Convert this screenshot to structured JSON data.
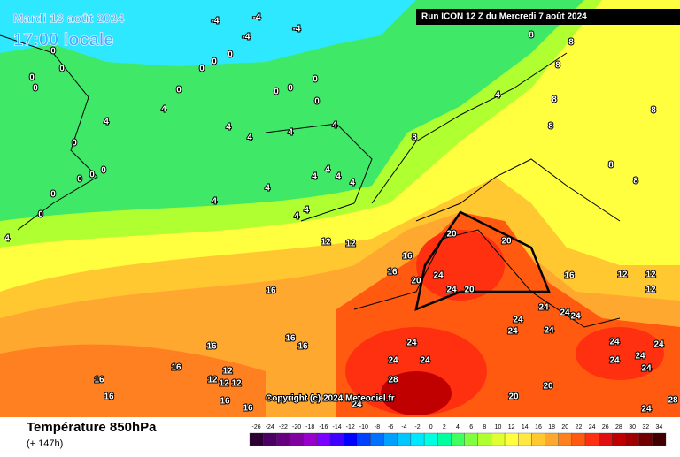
{
  "header": {
    "date": "Mardi 13 août 2024",
    "time": "17:00 locale",
    "run": "Run ICON 12 Z du Mercredi 7 août 2024",
    "copyright": "Copyright (c) 2024 Meteociel.fr"
  },
  "footer": {
    "title": "Température 850hPa",
    "lead": "(+ 147h)"
  },
  "scale": {
    "ticks": [
      -26,
      -24,
      -22,
      -20,
      -18,
      -16,
      -14,
      -12,
      -10,
      -8,
      -6,
      -4,
      -2,
      0,
      2,
      4,
      6,
      8,
      10,
      12,
      14,
      16,
      18,
      20,
      22,
      24,
      26,
      28,
      30,
      32,
      34
    ],
    "colors": [
      "#2d0033",
      "#4b0066",
      "#660080",
      "#8000a0",
      "#9900cc",
      "#7a00ff",
      "#4000ff",
      "#0000ff",
      "#0040ff",
      "#0070ff",
      "#00a0ff",
      "#00c8ff",
      "#00e8ff",
      "#00ffe0",
      "#00ffa0",
      "#40ff60",
      "#80ff40",
      "#b0ff30",
      "#e0ff30",
      "#ffff40",
      "#ffe840",
      "#ffc830",
      "#ffa830",
      "#ff8020",
      "#ff5a10",
      "#ff3010",
      "#e01010",
      "#c00000",
      "#a00000",
      "#700000",
      "#400000"
    ]
  },
  "map_labels": [
    -4,
    -4,
    -4,
    -4,
    0,
    0,
    0,
    0,
    0,
    0,
    0,
    0,
    0,
    0,
    0,
    0,
    4,
    4,
    4,
    4,
    4,
    4,
    4,
    4,
    4,
    4,
    4,
    4,
    4,
    4,
    4,
    8,
    8,
    8,
    8,
    8,
    8,
    8,
    8,
    8,
    0,
    0,
    0,
    0,
    0,
    0,
    4,
    12,
    12,
    16,
    16,
    16,
    16,
    16,
    16,
    16,
    16,
    16,
    12,
    12,
    12,
    12,
    16,
    16,
    20,
    20,
    20,
    20,
    24,
    24,
    24,
    24,
    24,
    24,
    24,
    24,
    24,
    24,
    24,
    24,
    24,
    24,
    24,
    24,
    24,
    24,
    28,
    28,
    20,
    20,
    16,
    12,
    12,
    12
  ]
}
